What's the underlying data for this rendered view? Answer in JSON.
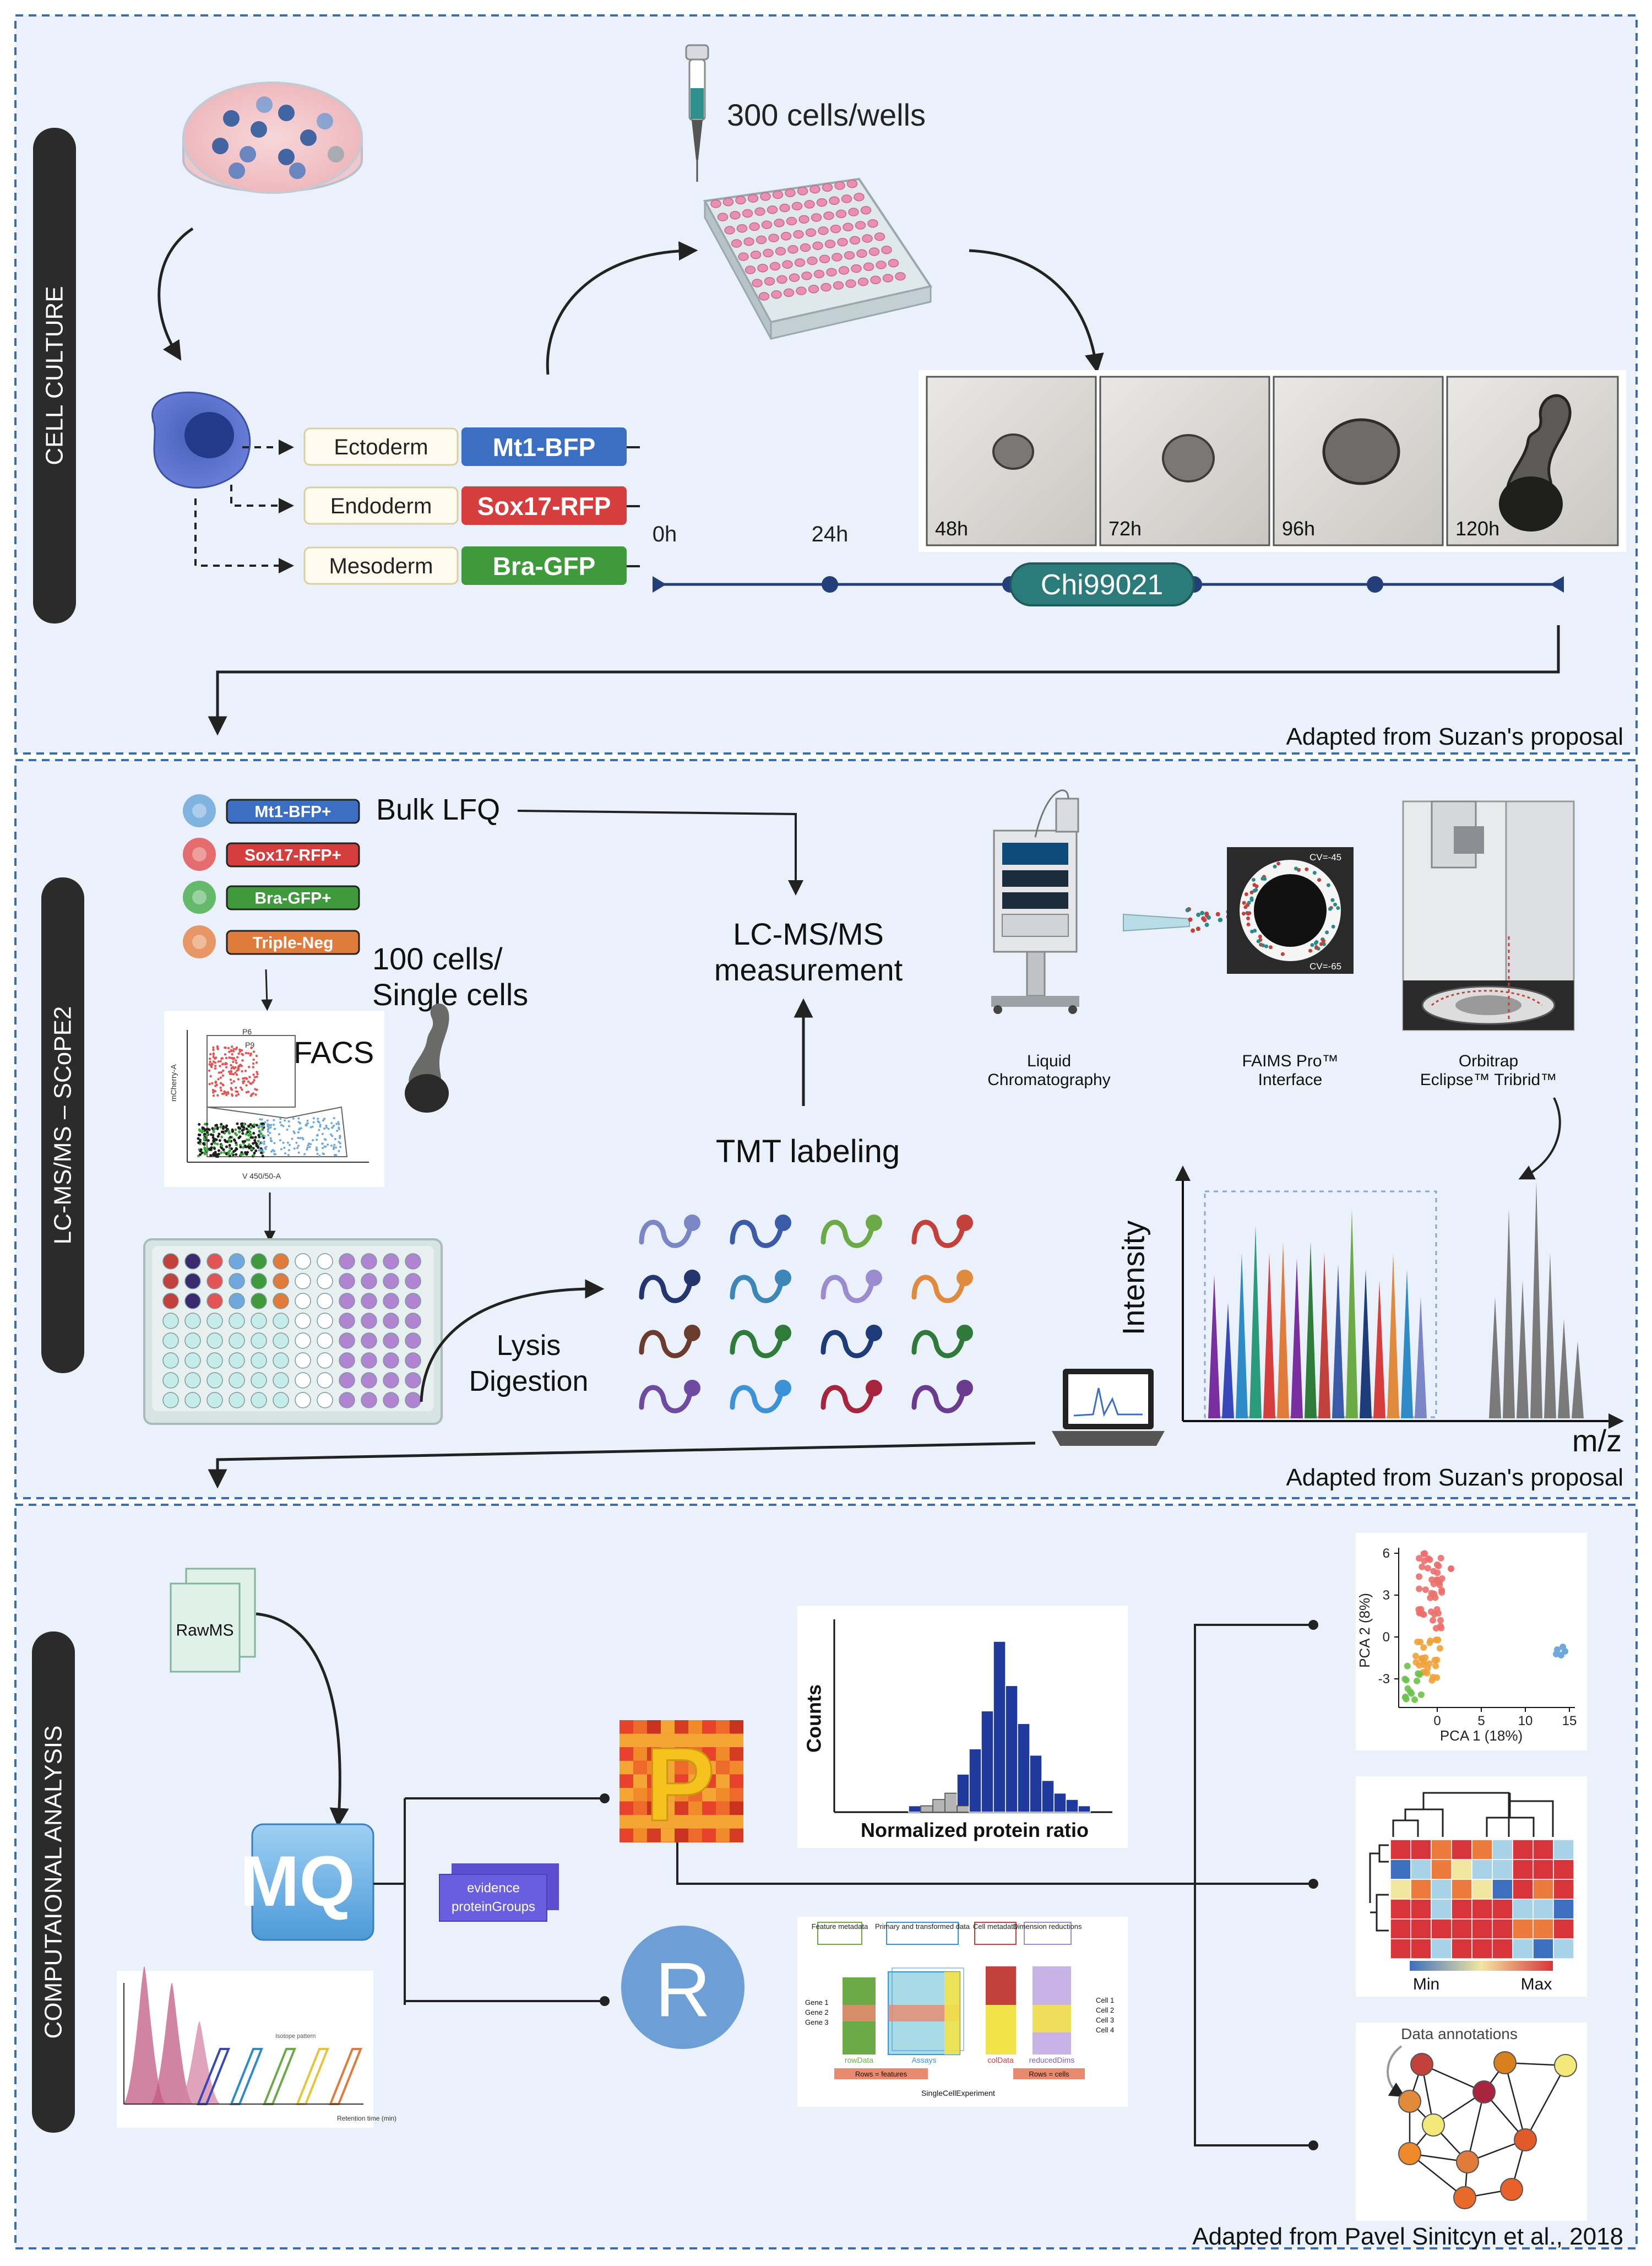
{
  "sections": {
    "culture": {
      "label": "CELL CULTURE",
      "note": "Adapted from Suzan's proposal",
      "cells_per_well": "300 cells/wells",
      "lineages": [
        {
          "name": "Ectoderm",
          "marker": "Mt1-BFP",
          "color": "#3a6fc4"
        },
        {
          "name": "Endoderm",
          "marker": "Sox17-RFP",
          "color": "#d63d3d"
        },
        {
          "name": "Mesoderm",
          "marker": "Bra-GFP",
          "color": "#3e9a3a"
        }
      ],
      "timeline": {
        "start": "0h",
        "t24": "24h",
        "compound": "Chi99021"
      },
      "micrographs": [
        "48h",
        "72h",
        "96h",
        "120h"
      ]
    },
    "ms": {
      "label": "LC-MS/MS – SCoPE2",
      "note": "Adapted from Suzan's proposal",
      "populations": [
        {
          "label": "Mt1-BFP+",
          "color": "#3a6fc4",
          "dot": "#6fa8dc"
        },
        {
          "label": "Sox17-RFP+",
          "color": "#d63d3d",
          "dot": "#e35555"
        },
        {
          "label": "Bra-GFP+",
          "color": "#3e9a3a",
          "dot": "#4caf50"
        },
        {
          "label": "Triple-Neg",
          "color": "#e07b3c",
          "dot": "#e6874a"
        }
      ],
      "bulk": "Bulk LFQ",
      "measurement_line1": "LC-MS/MS",
      "measurement_line2": "measurement",
      "cells_line1": "100 cells/",
      "cells_line2": "Single cells",
      "facs": "FACS",
      "tmt": "TMT labeling",
      "lysis": "Lysis",
      "digestion": "Digestion",
      "instruments": [
        {
          "line1": "Liquid",
          "line2": "Chromatography"
        },
        {
          "line1": "FAIMS Pro™",
          "line2": "Interface"
        },
        {
          "line1": "Orbitrap",
          "line2": "Eclipse™ Tribrid™"
        }
      ],
      "faims_cv_top": "CV=-45",
      "faims_cv_bottom": "CV=-65",
      "facs_gate_p6": "P6",
      "facs_gate_p9": "P9",
      "facs_xaxis": "V 450/50-A",
      "facs_yaxis": "mCherry-A",
      "spectrum_ylabel": "Intensity",
      "spectrum_xlabel": "m/z",
      "tmt_colors": [
        "#7a86c6",
        "#3b5ba8",
        "#6caa48",
        "#c2413a",
        "#24356f",
        "#3d86b8",
        "#9b8bd0",
        "#e08a3e",
        "#6b3b2e",
        "#2e7b3a",
        "#1e3c7a",
        "#2f7a3a",
        "#6e4ba0",
        "#3b92d6",
        "#a8243e",
        "#6a3b8e"
      ],
      "spectrum_colors": [
        "#7a2fa0",
        "#3848b8",
        "#2e8bc8",
        "#2a9a7a",
        "#d63d3d",
        "#e07b3c",
        "#7a2fa0",
        "#2e7b3a",
        "#c2413a",
        "#3b5ba8",
        "#6caa48",
        "#1e3c7a",
        "#d63d3d",
        "#e08a3e",
        "#2e8bc8",
        "#7a86c6"
      ]
    },
    "comp": {
      "label": "COMPUTAIONAL ANALYSIS",
      "note": "Adapted from Pavel Sinitcyn et al., 2018",
      "rawms": "RawMS",
      "mq_letters": "MQ",
      "evidence": "evidence",
      "protein_groups": "proteinGroups",
      "perseus_letter": "P",
      "r_letter": "R",
      "hist_ylabel": "Counts",
      "hist_xlabel": "Normalized protein ratio",
      "hist_values": [
        1,
        1,
        2,
        3,
        6,
        10,
        16,
        27,
        20,
        14,
        9,
        5,
        3,
        2,
        1
      ],
      "hist_gray": [
        0,
        1,
        2,
        3,
        1,
        0,
        0,
        0,
        0,
        0,
        0,
        0,
        0,
        0,
        0
      ],
      "pca_xlabel": "PCA 1 (18%)",
      "pca_ylabel": "PCA 2 (8%)",
      "pca_xticks": [
        "0",
        "5",
        "10",
        "15"
      ],
      "pca_yticks": [
        "6",
        "3",
        "0",
        "-3"
      ],
      "heatmap_min": "Min",
      "heatmap_max": "Max",
      "network_title": "Data annotations",
      "sce": {
        "feature_metadata": "Feature metadata",
        "primary_data": "Primary and transformed data",
        "cell_metadata": "Cell metadata",
        "dim_reductions": "Dimension reductions",
        "row_data": "rowData",
        "assays": "Assays",
        "col_data": "colData",
        "reduced_dims": "reducedDims",
        "rows_features": "Rows = features",
        "rows_cells": "Rows = cells",
        "footer": "SingleCellExperiment",
        "genes": [
          "Gene 1",
          "Gene 2",
          "Gene 3"
        ],
        "cells": [
          "Cell 1",
          "Cell 2",
          "Cell 3",
          "Cell 4"
        ]
      },
      "maxquant_caption": "Isotope pattern",
      "maxquant_axis": "Retention time (min)"
    }
  }
}
